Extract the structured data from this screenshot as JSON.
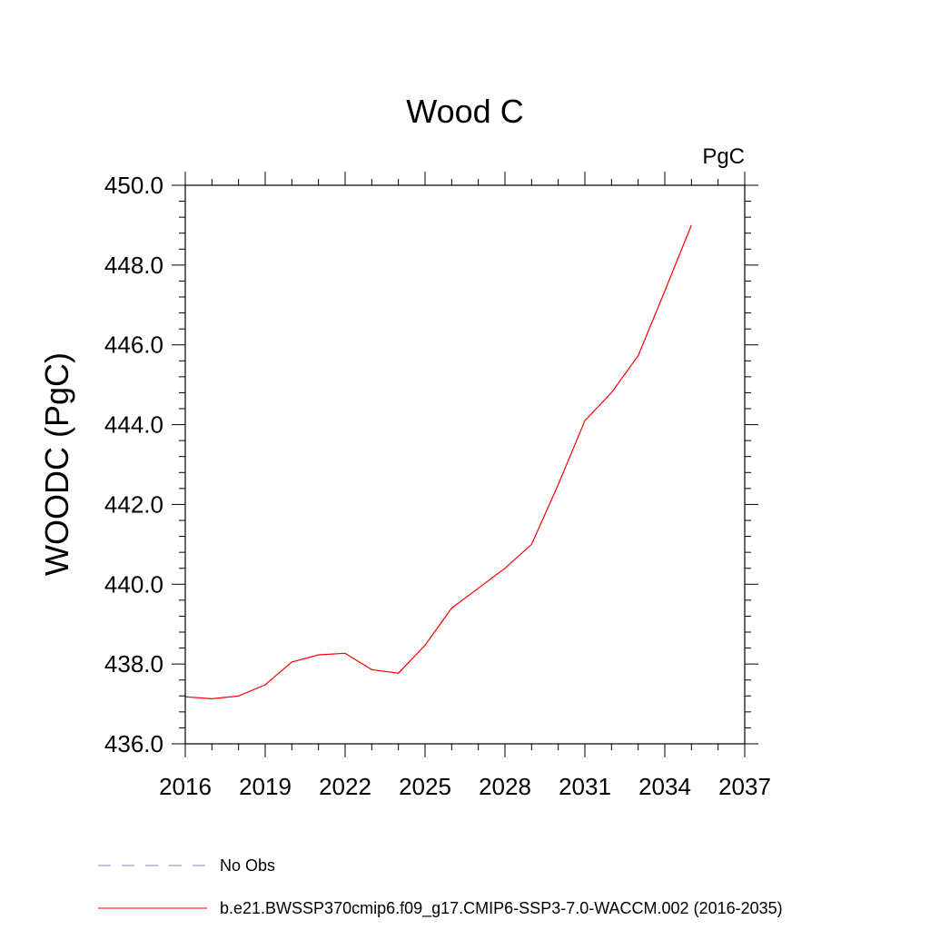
{
  "chart_data": {
    "type": "line",
    "title": "Wood C",
    "units_label": "PgC",
    "ylabel": "WOODC  (PgC)",
    "xlabel": "",
    "xlim": [
      2016,
      2037
    ],
    "ylim": [
      436.0,
      450.0
    ],
    "x_ticks": [
      2016,
      2019,
      2022,
      2025,
      2028,
      2031,
      2034,
      2037
    ],
    "x_tick_labels": [
      "2016",
      "2019",
      "2022",
      "2025",
      "2028",
      "2031",
      "2034",
      "2037"
    ],
    "y_ticks": [
      436.0,
      438.0,
      440.0,
      442.0,
      444.0,
      446.0,
      448.0,
      450.0
    ],
    "y_tick_labels": [
      "436.0",
      "438.0",
      "440.0",
      "442.0",
      "444.0",
      "446.0",
      "448.0",
      "450.0"
    ],
    "grid": false,
    "series": [
      {
        "name": "b.e21.BWSSP370cmip6.f09_g17.CMIP6-SSP3-7.0-WACCM.002 (2016-2035)",
        "color": "#ff0000",
        "style": "solid",
        "x": [
          2016,
          2017,
          2018,
          2019,
          2020,
          2021,
          2022,
          2023,
          2024,
          2025,
          2026,
          2027,
          2028,
          2029,
          2030,
          2031,
          2032,
          2033,
          2034,
          2035
        ],
        "values": [
          437.18,
          437.13,
          437.2,
          437.48,
          438.05,
          438.23,
          438.27,
          437.86,
          437.77,
          438.47,
          439.4,
          439.9,
          440.4,
          441.0,
          442.5,
          444.1,
          444.8,
          445.73,
          447.35,
          449.0
        ]
      },
      {
        "name": "No Obs",
        "color": "#8b7dc8",
        "style": "dashed",
        "x": [],
        "values": []
      }
    ],
    "legend": {
      "placement": "bottom-left",
      "entries": [
        {
          "label": "No Obs",
          "color": "#8b7dc8",
          "style": "dashed"
        },
        {
          "label": "b.e21.BWSSP370cmip6.f09_g17.CMIP6-SSP3-7.0-WACCM.002 (2016-2035)",
          "color": "#ff0000",
          "style": "solid"
        }
      ]
    }
  }
}
